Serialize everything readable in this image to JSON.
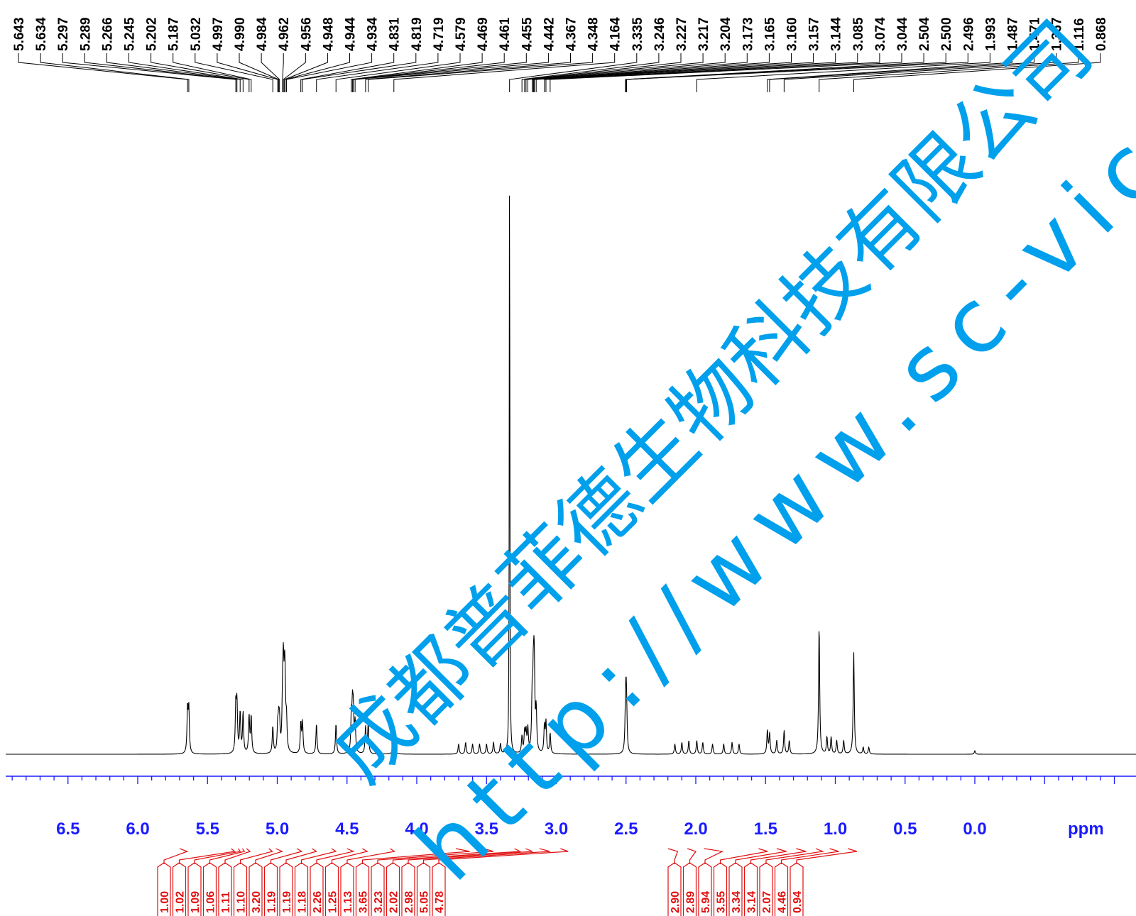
{
  "chart_data": {
    "type": "line",
    "title": "",
    "xlabel": "ppm",
    "ylabel": "",
    "xlim": [
      6.9,
      -0.95
    ],
    "x_reversed": true,
    "grid": false,
    "x_ticks": [
      "6.5",
      "6.0",
      "5.5",
      "5.0",
      "4.5",
      "4.0",
      "3.5",
      "3.0",
      "2.5",
      "2.0",
      "1.5",
      "1.0",
      "0.5",
      "0.0"
    ],
    "peak_labels": [
      "5.643",
      "5.634",
      "5.297",
      "5.289",
      "5.266",
      "5.245",
      "5.202",
      "5.187",
      "5.032",
      "4.997",
      "4.990",
      "4.984",
      "4.962",
      "4.956",
      "4.948",
      "4.944",
      "4.934",
      "4.831",
      "4.819",
      "4.719",
      "4.579",
      "4.469",
      "4.461",
      "4.455",
      "4.442",
      "4.367",
      "4.348",
      "4.164",
      "3.335",
      "3.246",
      "3.227",
      "3.217",
      "3.204",
      "3.173",
      "3.165",
      "3.160",
      "3.157",
      "3.144",
      "3.085",
      "3.074",
      "3.044",
      "2.504",
      "2.500",
      "2.496",
      "1.993",
      "1.487",
      "1.471",
      "1.367",
      "1.116",
      "0.868"
    ],
    "integrals": [
      {
        "value": "1.00",
        "from": 5.7,
        "to": 5.59
      },
      {
        "value": "1.02",
        "from": 5.33,
        "to": 5.28
      },
      {
        "value": "1.09",
        "from": 5.28,
        "to": 5.25
      },
      {
        "value": "1.06",
        "from": 5.25,
        "to": 5.22
      },
      {
        "value": "1.11",
        "from": 5.22,
        "to": 5.17
      },
      {
        "value": "1.10",
        "from": 5.06,
        "to": 5.01
      },
      {
        "value": "3.20",
        "from": 5.01,
        "to": 4.92
      },
      {
        "value": "1.19",
        "from": 4.86,
        "to": 4.79
      },
      {
        "value": "1.19",
        "from": 4.75,
        "to": 4.69
      },
      {
        "value": "1.18",
        "from": 4.61,
        "to": 4.55
      },
      {
        "value": "2.26",
        "from": 4.5,
        "to": 4.41
      },
      {
        "value": "1.25",
        "from": 4.39,
        "to": 4.32
      },
      {
        "value": "1.13",
        "from": 4.19,
        "to": 4.13
      },
      {
        "value": "3.65",
        "from": 3.72,
        "to": 3.52
      },
      {
        "value": "3.23",
        "from": 3.52,
        "to": 3.38
      },
      {
        "value": "2.02",
        "from": 3.3,
        "to": 3.22
      },
      {
        "value": "2.98",
        "from": 3.22,
        "to": 3.12
      },
      {
        "value": "5.05",
        "from": 3.12,
        "to": 2.97
      },
      {
        "value": "4.78",
        "from": 2.97,
        "to": 2.86
      },
      {
        "value": "2.90",
        "from": 2.2,
        "to": 2.06
      },
      {
        "value": "2.89",
        "from": 2.06,
        "to": 1.94
      },
      {
        "value": "5.94",
        "from": 1.94,
        "to": 1.68
      },
      {
        "value": "3.55",
        "from": 1.55,
        "to": 1.42
      },
      {
        "value": "3.34",
        "from": 1.42,
        "to": 1.28
      },
      {
        "value": "3.14",
        "from": 1.28,
        "to": 1.14
      },
      {
        "value": "2.07",
        "from": 1.14,
        "to": 1.04
      },
      {
        "value": "4.46",
        "from": 1.04,
        "to": 0.91
      },
      {
        "value": "0.94",
        "from": 0.91,
        "to": 0.78
      }
    ],
    "series": [
      {
        "peaks": [
          {
            "ppm": 5.643,
            "h": 0.13
          },
          {
            "ppm": 5.634,
            "h": 0.13
          },
          {
            "ppm": 5.297,
            "h": 0.14
          },
          {
            "ppm": 5.289,
            "h": 0.14
          },
          {
            "ppm": 5.266,
            "h": 0.12
          },
          {
            "ppm": 5.245,
            "h": 0.12
          },
          {
            "ppm": 5.202,
            "h": 0.11
          },
          {
            "ppm": 5.187,
            "h": 0.11
          },
          {
            "ppm": 5.032,
            "h": 0.08
          },
          {
            "ppm": 4.997,
            "h": 0.07
          },
          {
            "ppm": 4.99,
            "h": 0.08
          },
          {
            "ppm": 4.984,
            "h": 0.08
          },
          {
            "ppm": 4.962,
            "h": 0.14
          },
          {
            "ppm": 4.956,
            "h": 0.22
          },
          {
            "ppm": 4.948,
            "h": 0.15
          },
          {
            "ppm": 4.944,
            "h": 0.14
          },
          {
            "ppm": 4.934,
            "h": 0.09
          },
          {
            "ppm": 4.831,
            "h": 0.09
          },
          {
            "ppm": 4.819,
            "h": 0.09
          },
          {
            "ppm": 4.719,
            "h": 0.09
          },
          {
            "ppm": 4.579,
            "h": 0.09
          },
          {
            "ppm": 4.469,
            "h": 0.1
          },
          {
            "ppm": 4.461,
            "h": 0.12
          },
          {
            "ppm": 4.455,
            "h": 0.11
          },
          {
            "ppm": 4.442,
            "h": 0.09
          },
          {
            "ppm": 4.367,
            "h": 0.08
          },
          {
            "ppm": 4.348,
            "h": 0.09
          },
          {
            "ppm": 4.164,
            "h": 0.09
          },
          {
            "ppm": 3.7,
            "h": 0.03
          },
          {
            "ppm": 3.65,
            "h": 0.035
          },
          {
            "ppm": 3.6,
            "h": 0.03
          },
          {
            "ppm": 3.55,
            "h": 0.03
          },
          {
            "ppm": 3.5,
            "h": 0.03
          },
          {
            "ppm": 3.45,
            "h": 0.035
          },
          {
            "ppm": 3.4,
            "h": 0.03
          },
          {
            "ppm": 3.335,
            "h": 1.9
          },
          {
            "ppm": 3.246,
            "h": 0.05
          },
          {
            "ppm": 3.227,
            "h": 0.06
          },
          {
            "ppm": 3.217,
            "h": 0.06
          },
          {
            "ppm": 3.204,
            "h": 0.07
          },
          {
            "ppm": 3.173,
            "h": 0.15
          },
          {
            "ppm": 3.165,
            "h": 0.17
          },
          {
            "ppm": 3.16,
            "h": 0.15
          },
          {
            "ppm": 3.157,
            "h": 0.14
          },
          {
            "ppm": 3.144,
            "h": 0.12
          },
          {
            "ppm": 3.085,
            "h": 0.08
          },
          {
            "ppm": 3.074,
            "h": 0.09
          },
          {
            "ppm": 3.044,
            "h": 0.06
          },
          {
            "ppm": 2.504,
            "h": 0.1
          },
          {
            "ppm": 2.5,
            "h": 0.12
          },
          {
            "ppm": 2.496,
            "h": 0.1
          },
          {
            "ppm": 2.15,
            "h": 0.03
          },
          {
            "ppm": 2.1,
            "h": 0.035
          },
          {
            "ppm": 2.05,
            "h": 0.04
          },
          {
            "ppm": 1.993,
            "h": 0.04
          },
          {
            "ppm": 1.95,
            "h": 0.035
          },
          {
            "ppm": 1.88,
            "h": 0.03
          },
          {
            "ppm": 1.8,
            "h": 0.03
          },
          {
            "ppm": 1.74,
            "h": 0.035
          },
          {
            "ppm": 1.69,
            "h": 0.03
          },
          {
            "ppm": 1.487,
            "h": 0.07
          },
          {
            "ppm": 1.471,
            "h": 0.06
          },
          {
            "ppm": 1.42,
            "h": 0.04
          },
          {
            "ppm": 1.367,
            "h": 0.07
          },
          {
            "ppm": 1.33,
            "h": 0.04
          },
          {
            "ppm": 1.116,
            "h": 0.38
          },
          {
            "ppm": 1.06,
            "h": 0.05
          },
          {
            "ppm": 1.03,
            "h": 0.05
          },
          {
            "ppm": 0.99,
            "h": 0.04
          },
          {
            "ppm": 0.94,
            "h": 0.04
          },
          {
            "ppm": 0.868,
            "h": 0.3
          },
          {
            "ppm": 0.8,
            "h": 0.02
          },
          {
            "ppm": 0.76,
            "h": 0.02
          },
          {
            "ppm": 0.0,
            "h": 0.01
          }
        ]
      }
    ]
  },
  "watermark": {
    "line1": "成都普菲德生物科技有限公司",
    "line2": "http://www.sc-victory.com",
    "color": "#00a0ec"
  },
  "colors": {
    "axis": "#1a1aff",
    "integral": "#e01010",
    "spectrum": "#000000"
  }
}
